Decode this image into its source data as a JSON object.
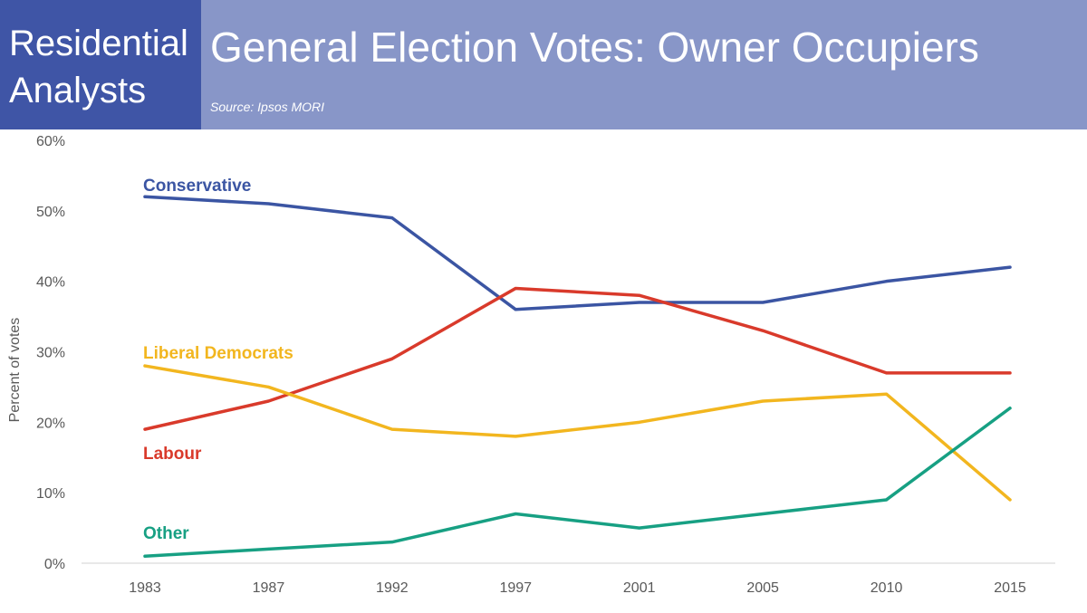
{
  "header": {
    "logo_line1": "Residential",
    "logo_line2": "Analysts",
    "title": "General Election Votes: Owner Occupiers",
    "source": "Source: Ipsos MORI"
  },
  "colors": {
    "header_bg": "#8896c8",
    "logo_bg": "#3f55a6",
    "axis_text": "#595959"
  },
  "chart_data": {
    "type": "line",
    "title": "General Election Votes: Owner Occupiers",
    "xlabel": "",
    "ylabel": "Percent of votes",
    "categories": [
      "1983",
      "1987",
      "1992",
      "1997",
      "2001",
      "2005",
      "2010",
      "2015"
    ],
    "ylim": [
      0,
      60
    ],
    "yticks": [
      0,
      10,
      20,
      30,
      40,
      50,
      60
    ],
    "ytick_labels": [
      "0%",
      "10%",
      "20%",
      "30%",
      "40%",
      "50%",
      "60%"
    ],
    "grid": false,
    "legend": "inline labels",
    "series": [
      {
        "name": "Conservative",
        "color": "#3b55a3",
        "values": [
          52,
          51,
          49,
          36,
          37,
          37,
          40,
          42
        ]
      },
      {
        "name": "Labour",
        "color": "#d93a2b",
        "values": [
          19,
          23,
          29,
          39,
          38,
          33,
          27,
          27
        ]
      },
      {
        "name": "Liberal Democrats",
        "color": "#f2b61f",
        "values": [
          28,
          25,
          19,
          18,
          20,
          23,
          24,
          9
        ]
      },
      {
        "name": "Other",
        "color": "#17a083",
        "values": [
          1,
          2,
          3,
          7,
          5,
          7,
          9,
          22
        ]
      }
    ]
  }
}
